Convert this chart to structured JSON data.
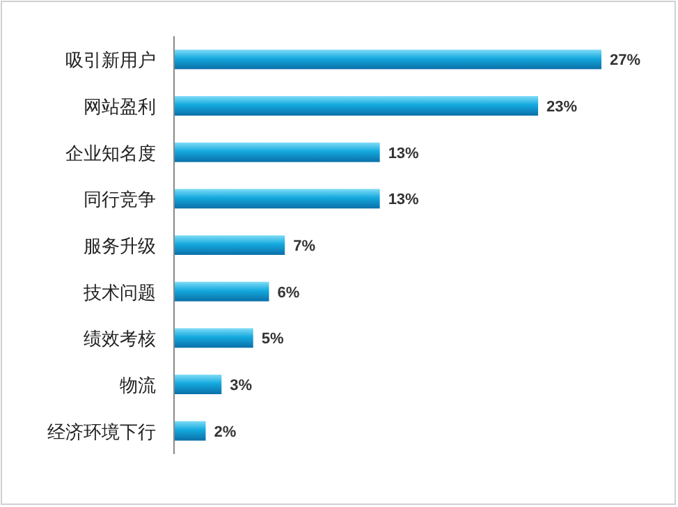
{
  "chart_data": {
    "type": "bar",
    "orientation": "horizontal",
    "categories": [
      "吸引新用户",
      "网站盈利",
      "企业知名度",
      "同行竞争",
      "服务升级",
      "技术问题",
      "绩效考核",
      "物流",
      "经济环境下行"
    ],
    "values": [
      27,
      23,
      13,
      13,
      7,
      6,
      5,
      3,
      2
    ],
    "value_labels": [
      "27%",
      "23%",
      "13%",
      "13%",
      "7%",
      "6%",
      "5%",
      "3%",
      "2%"
    ],
    "color": "#14a9de"
  }
}
